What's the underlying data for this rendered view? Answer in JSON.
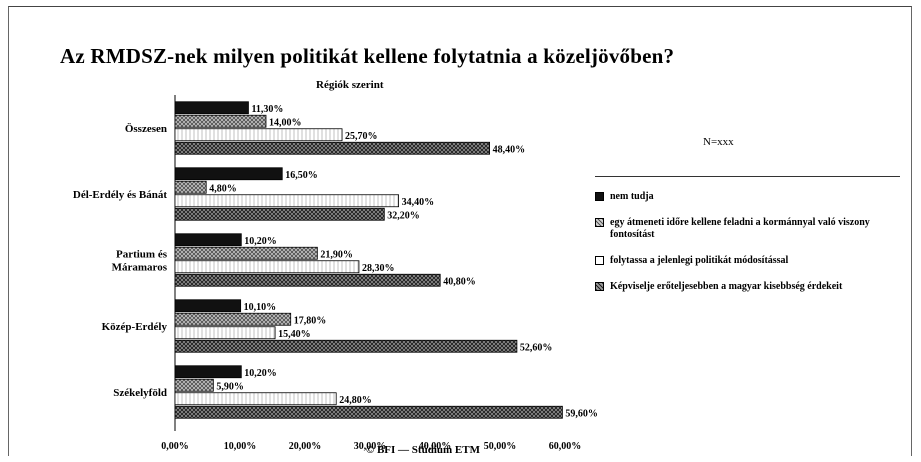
{
  "chart_data": {
    "type": "bar",
    "orientation": "horizontal",
    "title": "Az RMDSZ-nek milyen politikát kellene folytatnia a közeljövőben?",
    "subtitle": "Régiók szerint",
    "categories": [
      "Összesen",
      "Dél-Erdély és Bánát",
      "Partium és Máramaros",
      "Közép-Erdély",
      "Székelyföld"
    ],
    "xlim": [
      0,
      60
    ],
    "x_ticks": [
      "0,00%",
      "10,00%",
      "20,00%",
      "30,00%",
      "40,00%",
      "50,00%",
      "60,00%"
    ],
    "grid": false,
    "legend_position": "right",
    "series": [
      {
        "name": "nem tudja",
        "color": "#1a1a1a",
        "values": [
          11.3,
          16.5,
          10.2,
          10.1,
          10.2
        ]
      },
      {
        "name": "egy átmeneti időre kellene feladni a kormánnyal való viszony fontosítást",
        "color": "#8a8a8a",
        "values": [
          14.0,
          4.8,
          21.9,
          17.8,
          5.9
        ]
      },
      {
        "name": "folytassa a jelenlegi politikát módosítással",
        "color": "#ffffff",
        "values": [
          25.7,
          34.4,
          28.3,
          15.4,
          24.8
        ]
      },
      {
        "name": "Képviselje erőteljesebben a magyar kisebbség érdekeit",
        "color": "#4a4a4a",
        "values": [
          48.4,
          32.2,
          40.8,
          52.6,
          59.6
        ]
      }
    ],
    "data_labels": [
      [
        "11,30%",
        "14,00%",
        "25,70%",
        "48,40%"
      ],
      [
        "16,50%",
        "4,80%",
        "34,40%",
        "32,20%"
      ],
      [
        "10,20%",
        "21,90%",
        "28,30%",
        "40,80%"
      ],
      [
        "10,10%",
        "17,80%",
        "15,40%",
        "52,60%"
      ],
      [
        "10,20%",
        "5,90%",
        "24,80%",
        "59,60%"
      ]
    ]
  },
  "n_label": "N=xxx",
  "source": "© BFI — Stúdium ETM"
}
